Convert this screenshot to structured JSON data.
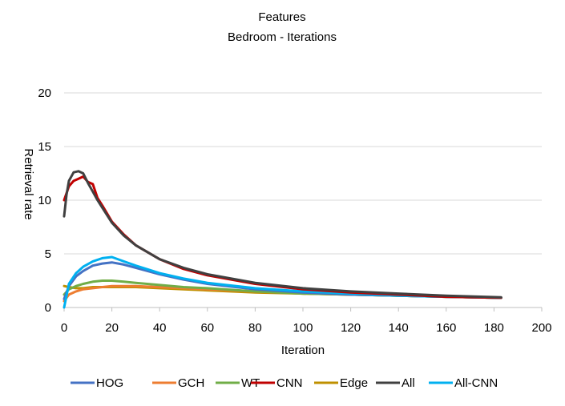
{
  "chart_data": {
    "type": "line",
    "title": "Features",
    "subtitle": "Bedroom - Iterations",
    "xlabel": "Iteration",
    "ylabel": "Retrieval rate",
    "xlim": [
      0,
      200
    ],
    "ylim": [
      0,
      20
    ],
    "xticks": [
      0,
      20,
      40,
      60,
      80,
      100,
      120,
      140,
      160,
      180,
      200
    ],
    "yticks": [
      0,
      5,
      10,
      15,
      20
    ],
    "grid": "horizontal",
    "legend_position": "bottom",
    "series": [
      {
        "name": "HOG",
        "color": "#4472C4",
        "x": [
          0,
          2,
          5,
          8,
          12,
          16,
          20,
          25,
          30,
          40,
          50,
          60,
          80,
          100,
          120,
          140,
          160,
          183
        ],
        "y": [
          0.8,
          2.0,
          2.9,
          3.4,
          3.9,
          4.1,
          4.2,
          4.0,
          3.7,
          3.1,
          2.6,
          2.2,
          1.7,
          1.4,
          1.2,
          1.1,
          1.0,
          0.9
        ]
      },
      {
        "name": "GCH",
        "color": "#ED7D31",
        "x": [
          0,
          2,
          5,
          8,
          12,
          16,
          20,
          25,
          30,
          40,
          50,
          60,
          80,
          100,
          120,
          140,
          160,
          183
        ],
        "y": [
          0.6,
          1.2,
          1.5,
          1.7,
          1.8,
          1.9,
          2.0,
          2.0,
          2.0,
          1.9,
          1.8,
          1.7,
          1.5,
          1.3,
          1.2,
          1.1,
          1.0,
          0.9
        ]
      },
      {
        "name": "WT",
        "color": "#70AD47",
        "x": [
          0,
          2,
          5,
          8,
          12,
          16,
          20,
          25,
          30,
          40,
          50,
          60,
          80,
          100,
          120,
          140,
          160,
          183
        ],
        "y": [
          1.2,
          1.7,
          2.0,
          2.2,
          2.4,
          2.5,
          2.5,
          2.4,
          2.3,
          2.1,
          1.9,
          1.8,
          1.5,
          1.3,
          1.2,
          1.1,
          1.0,
          0.9
        ]
      },
      {
        "name": "CNN",
        "color": "#C00000",
        "x": [
          0,
          2,
          4,
          6,
          8,
          10,
          12,
          14,
          16,
          20,
          25,
          30,
          40,
          50,
          60,
          80,
          100,
          120,
          140,
          160,
          183
        ],
        "y": [
          10.0,
          11.3,
          11.8,
          12.0,
          12.2,
          11.7,
          11.5,
          10.2,
          9.5,
          8.0,
          6.8,
          5.8,
          4.5,
          3.6,
          3.0,
          2.2,
          1.7,
          1.4,
          1.2,
          1.0,
          0.9
        ]
      },
      {
        "name": "Edge",
        "color": "#BF9000",
        "x": [
          0,
          2,
          5,
          8,
          12,
          16,
          20,
          25,
          30,
          40,
          50,
          60,
          80,
          100,
          120,
          140,
          160,
          183
        ],
        "y": [
          2.0,
          1.9,
          1.8,
          1.8,
          1.9,
          1.9,
          1.9,
          1.9,
          1.9,
          1.8,
          1.7,
          1.6,
          1.4,
          1.3,
          1.2,
          1.1,
          1.0,
          0.9
        ]
      },
      {
        "name": "All",
        "color": "#404040",
        "x": [
          0,
          1,
          2,
          4,
          6,
          8,
          10,
          12,
          14,
          16,
          20,
          25,
          30,
          40,
          50,
          60,
          80,
          100,
          120,
          140,
          160,
          183
        ],
        "y": [
          8.5,
          10.5,
          11.8,
          12.6,
          12.7,
          12.5,
          11.6,
          10.8,
          10.0,
          9.3,
          7.9,
          6.7,
          5.8,
          4.5,
          3.7,
          3.1,
          2.3,
          1.8,
          1.5,
          1.3,
          1.1,
          0.95
        ]
      },
      {
        "name": "All-CNN",
        "color": "#00B0F0",
        "x": [
          0,
          2,
          5,
          8,
          12,
          16,
          20,
          25,
          30,
          40,
          50,
          60,
          80,
          100,
          120,
          140,
          160,
          183
        ],
        "y": [
          0.0,
          2.2,
          3.2,
          3.8,
          4.3,
          4.6,
          4.7,
          4.3,
          3.9,
          3.2,
          2.7,
          2.3,
          1.8,
          1.5,
          1.3,
          1.1,
          1.0,
          0.9
        ]
      }
    ]
  }
}
